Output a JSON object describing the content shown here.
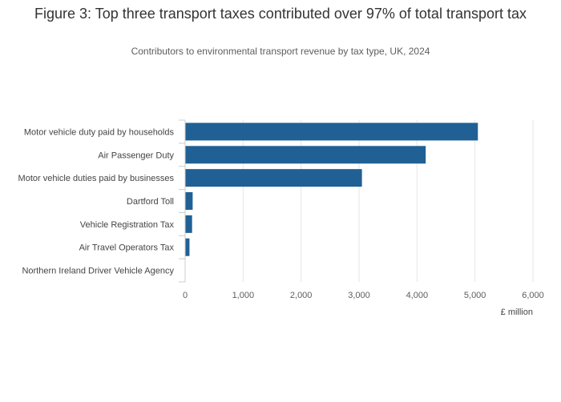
{
  "colors": {
    "bar": "#206095",
    "grid": "#e6e6e6",
    "axis": "#cccccc"
  },
  "chart_data": {
    "type": "bar",
    "orientation": "horizontal",
    "title": "Figure 3: Top three transport taxes contributed over 97% of total transport tax",
    "subtitle": "Contributors to environmental transport revenue by tax type, UK, 2024",
    "categories": [
      "Motor vehicle duty paid by households",
      "Air Passenger Duty",
      "Motor vehicle duties paid by businesses",
      "Dartford Toll",
      "Vehicle Registration Tax",
      "Air Travel Operators Tax",
      "Northern Ireland Driver Vehicle Agency"
    ],
    "values": [
      5050,
      4150,
      3050,
      130,
      120,
      75,
      5
    ],
    "xlabel": "£ million",
    "ylabel": "",
    "xlim": [
      0,
      6000
    ],
    "xticks": [
      0,
      1000,
      2000,
      3000,
      4000,
      5000,
      6000
    ],
    "xtick_labels": [
      "0",
      "1,000",
      "2,000",
      "3,000",
      "4,000",
      "5,000",
      "6,000"
    ],
    "grid": true,
    "legend": "none"
  }
}
